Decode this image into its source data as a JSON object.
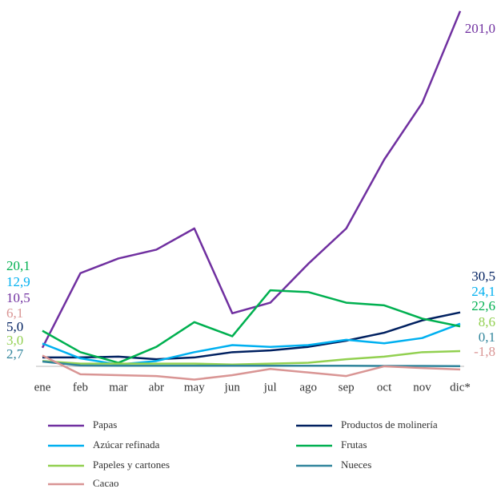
{
  "chart_data": {
    "type": "line",
    "categories": [
      "ene",
      "feb",
      "mar",
      "abr",
      "may",
      "jun",
      "jul",
      "ago",
      "sep",
      "oct",
      "nov",
      "dic*"
    ],
    "ylim": [
      -10,
      205
    ],
    "series": [
      {
        "name": "Papas",
        "color": "#7030a0",
        "values": [
          10.5,
          52.7,
          61,
          66,
          78,
          30,
          36,
          58,
          78,
          117,
          149,
          201.0
        ],
        "value_labels": [
          "10,5",
          null,
          null,
          null,
          null,
          null,
          null,
          null,
          null,
          null,
          null,
          "201,0"
        ]
      },
      {
        "name": "Productos de molinería",
        "color": "#002060",
        "values": [
          5.0,
          5,
          5.5,
          4,
          5,
          8,
          9,
          11,
          14.5,
          19,
          26,
          30.5
        ],
        "value_labels": [
          "5,0",
          null,
          null,
          null,
          null,
          null,
          null,
          null,
          null,
          null,
          null,
          "30,5"
        ]
      },
      {
        "name": "Azúcar refinada",
        "color": "#00b0f0",
        "values": [
          12.9,
          4.5,
          1,
          3,
          8,
          12,
          11,
          12,
          15,
          13,
          16,
          24.1
        ],
        "value_labels": [
          "12,9",
          null,
          null,
          null,
          null,
          null,
          null,
          null,
          null,
          null,
          null,
          "24,1"
        ]
      },
      {
        "name": "Frutas",
        "color": "#00b050",
        "values": [
          20.1,
          8,
          2,
          11,
          25,
          17,
          43,
          42,
          36,
          34.5,
          27,
          22.6
        ],
        "value_labels": [
          "20,1",
          null,
          null,
          null,
          null,
          null,
          null,
          null,
          null,
          null,
          null,
          "22,6"
        ]
      },
      {
        "name": "Papeles y cartones",
        "color": "#92d050",
        "values": [
          3.0,
          1.5,
          1.5,
          1.5,
          1.5,
          1,
          1.5,
          2,
          4,
          5.5,
          8,
          8.6
        ],
        "value_labels": [
          "3,0",
          null,
          null,
          null,
          null,
          null,
          null,
          null,
          null,
          null,
          null,
          "8,6"
        ]
      },
      {
        "name": "Nueces",
        "color": "#31859c",
        "values": [
          2.7,
          0.5,
          0.3,
          0.3,
          0.3,
          0.3,
          0.3,
          0.3,
          0.3,
          0.2,
          0.2,
          0.1
        ],
        "value_labels": [
          "2,7",
          null,
          null,
          null,
          null,
          null,
          null,
          null,
          null,
          null,
          null,
          "0,1"
        ]
      },
      {
        "name": "Cacao",
        "color": "#d99594",
        "values": [
          6.1,
          -4.5,
          -5,
          -5.5,
          -7.5,
          -5,
          -1.5,
          -3.5,
          -5.5,
          0,
          -1,
          -1.8
        ],
        "value_labels": [
          "6,1",
          null,
          null,
          null,
          null,
          null,
          null,
          null,
          null,
          null,
          null,
          "-1,8"
        ]
      }
    ]
  }
}
